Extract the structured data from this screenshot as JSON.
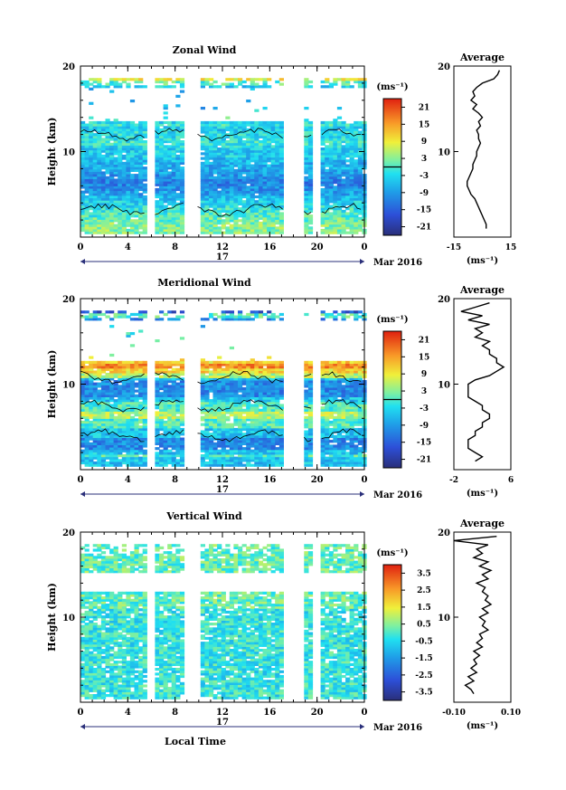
{
  "common": {
    "xlabel": "Local Time",
    "xticks": [
      "0",
      "4",
      "8",
      "12",
      "16",
      "20",
      "0"
    ],
    "date_label": "17",
    "month_label": "Mar 2016",
    "ylabel": "Height (km)",
    "yticks": [
      "20",
      "10"
    ],
    "unit": "(ms⁻¹)",
    "avg_title": "Average",
    "avg_unit": "(ms⁻¹)"
  },
  "chart_data": [
    {
      "type": "heatmap",
      "title": "Zonal Wind",
      "xlim": [
        0,
        24
      ],
      "ylim": [
        0,
        20
      ],
      "colorbar_ticks": [
        "21",
        "15",
        "9",
        "3",
        "-3",
        "-9",
        "-15",
        "-21"
      ],
      "colorbar_range": [
        -24,
        24
      ],
      "data_gaps_hours": [
        [
          5.6,
          6.0
        ],
        [
          8.8,
          9.8
        ],
        [
          17.2,
          17.5
        ],
        [
          18.0,
          18.7
        ],
        [
          19.8,
          20.2
        ]
      ],
      "profile": {
        "xticks": [
          "-15",
          "15"
        ],
        "xlim": [
          -15,
          15
        ],
        "points": [
          [
            9,
            19.5
          ],
          [
            8,
            19.0
          ],
          [
            6,
            18.5
          ],
          [
            0,
            18.0
          ],
          [
            -3,
            17.5
          ],
          [
            -5,
            17.0
          ],
          [
            -4,
            16.5
          ],
          [
            -6,
            16.0
          ],
          [
            -3,
            15.5
          ],
          [
            -5,
            15.0
          ],
          [
            -2,
            14.5
          ],
          [
            0,
            14.0
          ],
          [
            -2,
            13.5
          ],
          [
            -1,
            13.0
          ],
          [
            -3,
            12.5
          ],
          [
            -2,
            12.0
          ],
          [
            -2,
            11.5
          ],
          [
            -1,
            11.0
          ],
          [
            -2,
            10.5
          ],
          [
            -3,
            10.0
          ],
          [
            -3,
            9.5
          ],
          [
            -4,
            9.0
          ],
          [
            -5,
            8.5
          ],
          [
            -5,
            8.0
          ],
          [
            -6,
            7.5
          ],
          [
            -7,
            7.0
          ],
          [
            -8,
            6.5
          ],
          [
            -8,
            6.0
          ],
          [
            -7,
            5.5
          ],
          [
            -6,
            5.0
          ],
          [
            -4,
            4.5
          ],
          [
            -3,
            4.0
          ],
          [
            -2,
            3.5
          ],
          [
            -1,
            3.0
          ],
          [
            0,
            2.5
          ],
          [
            1,
            2.0
          ],
          [
            2,
            1.5
          ],
          [
            2,
            1.0
          ]
        ]
      }
    },
    {
      "type": "heatmap",
      "title": "Meridional Wind",
      "xlim": [
        0,
        24
      ],
      "ylim": [
        0,
        20
      ],
      "colorbar_ticks": [
        "21",
        "15",
        "9",
        "3",
        "-3",
        "-9",
        "-15",
        "-21"
      ],
      "colorbar_range": [
        -24,
        24
      ],
      "data_gaps_hours": [
        [
          5.6,
          6.0
        ],
        [
          8.8,
          9.8
        ],
        [
          17.2,
          17.5
        ],
        [
          18.0,
          18.7
        ],
        [
          19.8,
          20.2
        ]
      ],
      "profile": {
        "xticks": [
          "-2",
          "6"
        ],
        "xlim": [
          -2,
          6
        ],
        "points": [
          [
            3,
            19.5
          ],
          [
            1,
            19.0
          ],
          [
            -1,
            18.5
          ],
          [
            2,
            18.0
          ],
          [
            0,
            17.5
          ],
          [
            3,
            17.0
          ],
          [
            1,
            16.5
          ],
          [
            2,
            16.0
          ],
          [
            1,
            15.5
          ],
          [
            3,
            15.0
          ],
          [
            2,
            14.5
          ],
          [
            3,
            14.0
          ],
          [
            3,
            13.5
          ],
          [
            4,
            13.0
          ],
          [
            4,
            12.5
          ],
          [
            5,
            12.0
          ],
          [
            4,
            11.5
          ],
          [
            3,
            11.0
          ],
          [
            1,
            10.5
          ],
          [
            0,
            10.0
          ],
          [
            0,
            9.5
          ],
          [
            0,
            9.0
          ],
          [
            0,
            8.5
          ],
          [
            1,
            8.0
          ],
          [
            2,
            7.5
          ],
          [
            2,
            7.0
          ],
          [
            3,
            6.5
          ],
          [
            3,
            6.0
          ],
          [
            2,
            5.5
          ],
          [
            2,
            5.0
          ],
          [
            1,
            4.5
          ],
          [
            1,
            4.0
          ],
          [
            0,
            3.5
          ],
          [
            0,
            3.0
          ],
          [
            0,
            2.5
          ],
          [
            1,
            2.0
          ],
          [
            2,
            1.5
          ],
          [
            1,
            1.0
          ]
        ]
      }
    },
    {
      "type": "heatmap",
      "title": "Vertical Wind",
      "xlim": [
        0,
        24
      ],
      "ylim": [
        0,
        20
      ],
      "colorbar_ticks": [
        "3.5",
        "2.5",
        "1.5",
        "0.5",
        "-0.5",
        "-1.5",
        "-2.5",
        "-3.5"
      ],
      "colorbar_range": [
        -4,
        4
      ],
      "data_gaps_hours": [
        [
          5.6,
          6.0
        ],
        [
          8.8,
          9.8
        ],
        [
          17.2,
          17.5
        ],
        [
          18.0,
          18.7
        ],
        [
          19.8,
          20.2
        ]
      ],
      "profile": {
        "xticks": [
          "-0.10",
          "0.10"
        ],
        "xlim": [
          -0.1,
          0.1
        ],
        "points": [
          [
            0.05,
            19.5
          ],
          [
            -0.1,
            19.0
          ],
          [
            0.02,
            18.5
          ],
          [
            -0.02,
            18.0
          ],
          [
            0.0,
            17.5
          ],
          [
            -0.03,
            17.0
          ],
          [
            0.02,
            16.5
          ],
          [
            -0.01,
            16.0
          ],
          [
            0.03,
            15.5
          ],
          [
            0.0,
            15.0
          ],
          [
            0.02,
            14.5
          ],
          [
            -0.02,
            14.0
          ],
          [
            0.01,
            13.5
          ],
          [
            0.0,
            13.0
          ],
          [
            0.02,
            12.5
          ],
          [
            0.01,
            12.0
          ],
          [
            0.03,
            11.5
          ],
          [
            0.0,
            11.0
          ],
          [
            0.02,
            10.5
          ],
          [
            -0.01,
            10.0
          ],
          [
            0.01,
            9.5
          ],
          [
            0.0,
            9.0
          ],
          [
            0.02,
            8.5
          ],
          [
            -0.01,
            8.0
          ],
          [
            0.0,
            7.5
          ],
          [
            -0.02,
            7.0
          ],
          [
            0.0,
            6.5
          ],
          [
            -0.03,
            6.0
          ],
          [
            -0.01,
            5.5
          ],
          [
            -0.03,
            5.0
          ],
          [
            -0.02,
            4.5
          ],
          [
            -0.04,
            4.0
          ],
          [
            -0.02,
            3.5
          ],
          [
            -0.05,
            3.0
          ],
          [
            -0.03,
            2.5
          ],
          [
            -0.06,
            2.0
          ],
          [
            -0.04,
            1.5
          ],
          [
            -0.03,
            1.0
          ]
        ]
      }
    }
  ]
}
